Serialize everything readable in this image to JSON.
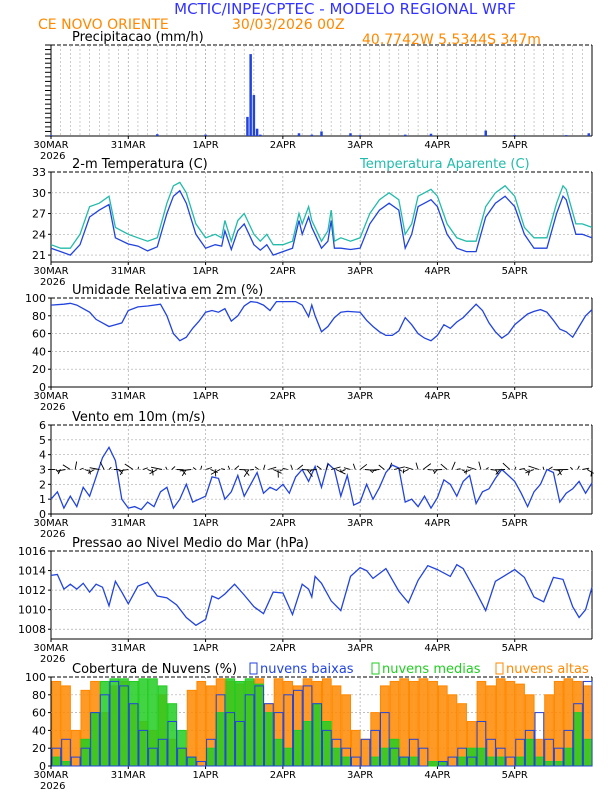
{
  "header": {
    "title": "MCTIC/INPE/CPTEC - MODELO REGIONAL WRF",
    "location": "CE NOVO ORIENTE",
    "run": "30/03/2026 00Z",
    "coords": "40.7742W 5.5344S 347m"
  },
  "colors": {
    "title": "#3333ff",
    "orange": "#ff8800",
    "blue": "#2244dd",
    "cyan": "#22bbaa",
    "green": "#22cc22",
    "grid": "#aaaaaa"
  },
  "x_axis": {
    "ticks": [
      {
        "label": "30MAR",
        "hour": 0
      },
      {
        "label": "31MAR",
        "hour": 24
      },
      {
        "label": "1APR",
        "hour": 48
      },
      {
        "label": "2APR",
        "hour": 72
      },
      {
        "label": "3APR",
        "hour": 96
      },
      {
        "label": "4APR",
        "hour": 120
      },
      {
        "label": "5APR",
        "hour": 144
      }
    ],
    "year": "2026",
    "max_hour": 168
  },
  "chart_data": [
    {
      "type": "bar",
      "title": "Precipitacao (mm/h)",
      "ylim": [
        0,
        20
      ],
      "x": [
        0,
        33,
        48,
        61,
        62,
        63,
        64,
        65,
        77,
        81,
        84,
        93,
        96,
        110,
        118,
        135,
        144,
        160,
        167
      ],
      "values": [
        0.2,
        0.4,
        0.3,
        4.2,
        18,
        9,
        1.6,
        0.3,
        0.6,
        0.3,
        1.0,
        0.6,
        0.2,
        0.3,
        0.5,
        1.2,
        0.2,
        0.2,
        0.6
      ]
    },
    {
      "type": "line",
      "title": "2-m Temperatura (C)",
      "legend": "Temperatura Aparente (C)",
      "yticks": [
        21,
        24,
        27,
        30,
        33
      ],
      "ylim": [
        20,
        33
      ],
      "series": [
        {
          "x": [
            0,
            3,
            6,
            9,
            12,
            15,
            18,
            20,
            24,
            27,
            30,
            33,
            36,
            38,
            40,
            42,
            45,
            48,
            51,
            53,
            54,
            56,
            58,
            60,
            62,
            63,
            65,
            67,
            69,
            72,
            75,
            77,
            78,
            80,
            81,
            84,
            86,
            87,
            88,
            90,
            93,
            96,
            99,
            102,
            105,
            108,
            110,
            112,
            114,
            116,
            118,
            120,
            123,
            126,
            129,
            132,
            135,
            138,
            141,
            144,
            147,
            150,
            154,
            157,
            159,
            160,
            163,
            165,
            168
          ],
          "values": [
            22.0,
            21.5,
            21.0,
            22.5,
            26.5,
            27.5,
            28.3,
            23.5,
            22.6,
            22.3,
            21.6,
            22.2,
            27.0,
            29.5,
            30.3,
            28.5,
            24.0,
            22.0,
            22.5,
            22.3,
            24.5,
            21.8,
            24.5,
            25.5,
            23.5,
            22.5,
            21.7,
            22.5,
            21.0,
            21.5,
            22.0,
            26.0,
            24.0,
            26.5,
            25.0,
            22.0,
            23.0,
            26.0,
            22.0,
            22.0,
            21.8,
            22.0,
            25.5,
            27.5,
            28.5,
            27.5,
            22.0,
            24.0,
            28.0,
            28.5,
            29.0,
            28.0,
            24.0,
            22.0,
            21.5,
            21.5,
            26.5,
            28.5,
            29.5,
            28.0,
            24.0,
            22.0,
            22.0,
            27.0,
            29.5,
            29.0,
            24.0,
            24.0,
            23.5
          ]
        },
        {
          "x": [
            0,
            3,
            6,
            9,
            12,
            15,
            18,
            20,
            24,
            27,
            30,
            33,
            36,
            38,
            40,
            42,
            45,
            48,
            51,
            53,
            54,
            56,
            58,
            60,
            62,
            63,
            65,
            67,
            69,
            72,
            75,
            77,
            78,
            80,
            81,
            84,
            86,
            87,
            88,
            90,
            93,
            96,
            99,
            102,
            105,
            108,
            110,
            112,
            114,
            116,
            118,
            120,
            123,
            126,
            129,
            132,
            135,
            138,
            141,
            144,
            147,
            150,
            154,
            157,
            159,
            160,
            163,
            165,
            168
          ],
          "values": [
            22.5,
            22.0,
            22.0,
            24.0,
            28.0,
            28.5,
            29.5,
            25.0,
            24.0,
            23.5,
            23.0,
            23.5,
            28.5,
            31.0,
            31.5,
            30.0,
            25.5,
            23.5,
            24.0,
            23.5,
            26.0,
            23.0,
            26.0,
            27.0,
            25.0,
            24.0,
            23.0,
            24.0,
            22.5,
            22.5,
            23.0,
            27.0,
            25.5,
            28.0,
            26.0,
            23.0,
            24.5,
            27.5,
            23.0,
            23.5,
            23.0,
            23.5,
            27.0,
            29.0,
            30.0,
            29.0,
            24.0,
            25.5,
            29.5,
            30.0,
            30.5,
            29.5,
            25.5,
            23.5,
            23.0,
            23.0,
            28.0,
            30.0,
            31.0,
            29.5,
            25.0,
            23.5,
            23.5,
            28.5,
            31.0,
            30.5,
            25.5,
            25.5,
            25.0
          ]
        }
      ]
    },
    {
      "type": "line",
      "title": "Umidade Relativa em 2m (%)",
      "yticks": [
        0,
        20,
        40,
        60,
        80,
        100
      ],
      "ylim": [
        0,
        100
      ],
      "series": [
        {
          "x": [
            0,
            4,
            6,
            8,
            12,
            14,
            16,
            18,
            20,
            22,
            24,
            27,
            30,
            34,
            36,
            38,
            40,
            42,
            44,
            46,
            48,
            50,
            52,
            54,
            56,
            58,
            60,
            62,
            64,
            66,
            68,
            70,
            72,
            76,
            78,
            80,
            81,
            82,
            84,
            86,
            88,
            90,
            92,
            96,
            98,
            100,
            102,
            104,
            106,
            108,
            110,
            112,
            114,
            116,
            118,
            120,
            122,
            124,
            126,
            128,
            132,
            134,
            136,
            138,
            140,
            142,
            144,
            148,
            150,
            152,
            154,
            156,
            158,
            160,
            162,
            164,
            166,
            168
          ],
          "values": [
            92,
            93,
            94,
            92,
            84,
            76,
            72,
            68,
            70,
            72,
            86,
            90,
            91,
            93,
            80,
            60,
            52,
            56,
            66,
            74,
            84,
            86,
            84,
            88,
            74,
            80,
            91,
            96,
            95,
            92,
            86,
            96,
            96,
            96,
            92,
            79,
            92,
            80,
            62,
            68,
            78,
            84,
            85,
            84,
            75,
            68,
            62,
            58,
            58,
            63,
            78,
            70,
            60,
            55,
            52,
            58,
            70,
            66,
            73,
            78,
            93,
            86,
            72,
            62,
            55,
            60,
            70,
            82,
            85,
            87,
            84,
            75,
            65,
            62,
            56,
            68,
            80,
            87
          ]
        }
      ]
    },
    {
      "type": "line",
      "title": "Vento em 10m (m/s)",
      "yticks": [
        0,
        1,
        2,
        3,
        4,
        5,
        6
      ],
      "ylim": [
        0,
        6
      ],
      "series": [
        {
          "x": [
            0,
            2,
            4,
            6,
            8,
            10,
            12,
            14,
            16,
            18,
            20,
            22,
            24,
            26,
            28,
            30,
            32,
            34,
            36,
            38,
            40,
            42,
            44,
            46,
            48,
            50,
            52,
            54,
            56,
            58,
            60,
            62,
            64,
            66,
            68,
            70,
            72,
            74,
            76,
            78,
            80,
            82,
            84,
            86,
            88,
            90,
            92,
            94,
            96,
            98,
            100,
            102,
            104,
            106,
            108,
            110,
            112,
            114,
            116,
            118,
            120,
            122,
            124,
            126,
            128,
            130,
            132,
            134,
            136,
            138,
            140,
            142,
            144,
            146,
            148,
            150,
            152,
            154,
            156,
            158,
            160,
            162,
            164,
            166,
            168
          ],
          "values": [
            1.0,
            1.5,
            0.4,
            1.2,
            0.5,
            1.8,
            1.2,
            2.5,
            3.8,
            4.5,
            3.6,
            1.0,
            0.4,
            0.5,
            0.3,
            0.8,
            0.5,
            1.5,
            1.8,
            0.4,
            1.0,
            2.0,
            0.8,
            1.0,
            1.2,
            2.5,
            2.4,
            1.0,
            1.5,
            2.6,
            1.2,
            2.0,
            2.8,
            1.4,
            1.8,
            1.6,
            2.0,
            1.4,
            2.5,
            3.0,
            2.2,
            3.2,
            1.8,
            3.4,
            3.0,
            1.2,
            2.6,
            0.6,
            0.8,
            2.0,
            1.0,
            1.8,
            2.8,
            3.3,
            3.1,
            0.8,
            1.0,
            0.5,
            1.2,
            0.4,
            1.1,
            2.3,
            2.0,
            1.2,
            2.2,
            2.6,
            0.7,
            1.5,
            1.7,
            2.4,
            3.0,
            2.6,
            2.2,
            1.4,
            0.5,
            1.5,
            2.0,
            3.0,
            2.8,
            0.8,
            1.4,
            1.7,
            2.2,
            1.4,
            2.1
          ]
        }
      ]
    },
    {
      "type": "line",
      "title": "Pressao ao Nivel Medio do Mar (hPa)",
      "yticks": [
        1008,
        1010,
        1012,
        1014,
        1016
      ],
      "ylim": [
        1007,
        1016
      ],
      "series": [
        {
          "x": [
            0,
            2,
            4,
            6,
            8,
            10,
            12,
            14,
            16,
            18,
            20,
            22,
            24,
            27,
            30,
            33,
            36,
            39,
            42,
            45,
            48,
            50,
            52,
            54,
            57,
            60,
            63,
            66,
            69,
            72,
            75,
            78,
            80,
            81,
            82,
            84,
            87,
            90,
            93,
            96,
            98,
            100,
            102,
            104,
            108,
            111,
            114,
            117,
            120,
            124,
            126,
            128,
            132,
            135,
            138,
            141,
            144,
            147,
            150,
            153,
            156,
            159,
            162,
            164,
            166,
            168
          ],
          "values": [
            1013.5,
            1013.6,
            1012.1,
            1012.6,
            1012.1,
            1012.7,
            1011.8,
            1012.6,
            1012.3,
            1010.4,
            1012.9,
            1011.8,
            1010.6,
            1012.4,
            1012.8,
            1011.4,
            1011.2,
            1010.5,
            1009.2,
            1008.4,
            1009.0,
            1011.4,
            1011.1,
            1011.6,
            1012.6,
            1011.5,
            1010.3,
            1009.6,
            1011.8,
            1011.7,
            1009.5,
            1012.6,
            1012.1,
            1011.3,
            1013.4,
            1012.7,
            1010.9,
            1009.9,
            1013.4,
            1014.3,
            1014.0,
            1013.2,
            1013.7,
            1014.2,
            1011.9,
            1010.7,
            1013.0,
            1014.5,
            1014.1,
            1013.4,
            1014.6,
            1014.2,
            1011.8,
            1009.9,
            1012.9,
            1013.5,
            1014.1,
            1013.3,
            1011.3,
            1010.8,
            1013.3,
            1013.1,
            1010.3,
            1009.2,
            1010.0,
            1012.3
          ]
        }
      ]
    },
    {
      "type": "bar",
      "title": "Cobertura de Nuvens (%)",
      "legend": [
        "nuvens baixas",
        "nuvens medias",
        "nuvens altas"
      ],
      "ylim": [
        0,
        100
      ],
      "yticks": [
        0,
        20,
        40,
        60,
        80,
        100
      ],
      "x": [
        0,
        3,
        6,
        9,
        12,
        15,
        18,
        21,
        24,
        27,
        30,
        33,
        36,
        39,
        42,
        45,
        48,
        51,
        54,
        57,
        60,
        63,
        66,
        69,
        72,
        75,
        78,
        81,
        84,
        87,
        90,
        93,
        96,
        99,
        102,
        105,
        108,
        111,
        114,
        117,
        120,
        123,
        126,
        129,
        132,
        135,
        138,
        141,
        144,
        147,
        150,
        153,
        156,
        159,
        162,
        165
      ],
      "series": [
        {
          "name": "nuvens altas",
          "values": [
            95,
            90,
            40,
            85,
            95,
            60,
            90,
            95,
            70,
            50,
            40,
            80,
            30,
            20,
            85,
            95,
            90,
            98,
            95,
            92,
            95,
            98,
            70,
            98,
            95,
            90,
            98,
            95,
            98,
            90,
            80,
            40,
            30,
            60,
            90,
            95,
            98,
            95,
            98,
            95,
            90,
            80,
            70,
            50,
            95,
            90,
            98,
            95,
            92,
            80,
            30,
            80,
            95,
            98,
            95,
            90
          ]
        },
        {
          "name": "nuvens medias",
          "values": [
            10,
            5,
            0,
            30,
            60,
            95,
            98,
            98,
            95,
            98,
            98,
            90,
            70,
            40,
            10,
            0,
            20,
            60,
            98,
            95,
            98,
            92,
            60,
            30,
            20,
            40,
            50,
            70,
            50,
            20,
            10,
            0,
            0,
            10,
            20,
            30,
            10,
            10,
            0,
            5,
            5,
            0,
            10,
            20,
            20,
            10,
            10,
            0,
            10,
            30,
            10,
            5,
            5,
            20,
            60,
            30
          ]
        },
        {
          "name": "nuvens baixas",
          "values": [
            20,
            30,
            10,
            20,
            60,
            80,
            95,
            90,
            70,
            40,
            20,
            30,
            50,
            20,
            10,
            5,
            30,
            80,
            60,
            50,
            80,
            90,
            70,
            60,
            80,
            85,
            90,
            70,
            40,
            30,
            20,
            10,
            30,
            40,
            60,
            20,
            10,
            30,
            20,
            0,
            5,
            10,
            20,
            10,
            50,
            30,
            20,
            10,
            30,
            40,
            60,
            30,
            20,
            40,
            70,
            95
          ]
        }
      ]
    }
  ]
}
